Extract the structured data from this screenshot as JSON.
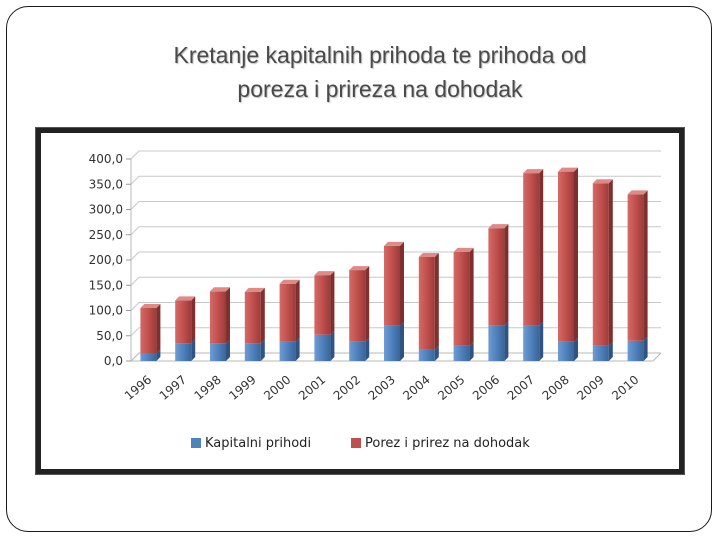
{
  "slide": {
    "title_line1": "Kretanje kapitalnih prihoda te prihoda od",
    "title_line2": "poreza i prireza na dohodak"
  },
  "chart_data": {
    "type": "bar",
    "stacked": true,
    "categories": [
      "1996",
      "1997",
      "1998",
      "1999",
      "2000",
      "2001",
      "2002",
      "2003",
      "2004",
      "2005",
      "2006",
      "2007",
      "2008",
      "2009",
      "2010"
    ],
    "series": [
      {
        "name": "Kapitalni prihodi",
        "color": "#4f81bd",
        "values": [
          15,
          35,
          35,
          35,
          38,
          52,
          38,
          70,
          22,
          30,
          70,
          70,
          38,
          30,
          40
        ]
      },
      {
        "name": "Porez i prirez na dohodak",
        "color": "#c0504d",
        "values": [
          90,
          85,
          103,
          102,
          115,
          118,
          142,
          158,
          184,
          186,
          193,
          302,
          337,
          322,
          290
        ]
      }
    ],
    "y_tick_labels": [
      "0,0",
      "50,0",
      "100,0",
      "150,0",
      "200,0",
      "250,0",
      "300,0",
      "350,0",
      "400,0"
    ],
    "ylim": [
      0,
      400
    ],
    "grid": true,
    "legend_position": "bottom"
  }
}
